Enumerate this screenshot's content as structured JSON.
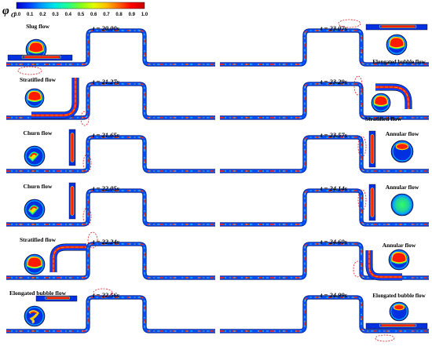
{
  "colorbar": {
    "symbol": "φ",
    "subscript": "G",
    "ticks": [
      "0.0",
      "0.1",
      "0.2",
      "0.3",
      "0.4",
      "0.5",
      "0.6",
      "0.7",
      "0.8",
      "0.9",
      "1.0"
    ],
    "colors": [
      "#0000c8",
      "#0040ff",
      "#00a0ff",
      "#00e8e8",
      "#20ff90",
      "#80ff20",
      "#e0ff00",
      "#ffc000",
      "#ff6000",
      "#ff0000",
      "#c80000"
    ]
  },
  "left_panels": [
    {
      "time": "t = 20.00s",
      "flow": "Slug flow",
      "inset": "horizontal"
    },
    {
      "time": "t = 21.27s",
      "flow": "Stratified flow",
      "inset": "elbow-up"
    },
    {
      "time": "t = 21.65s",
      "flow": "Churn flow",
      "inset": "vertical"
    },
    {
      "time": "t = 22.05s",
      "flow": "Churn flow",
      "inset": "vertical"
    },
    {
      "time": "t = 22.24s",
      "flow": "Stratified flow",
      "inset": "elbow-top"
    },
    {
      "time": "t = 22.56s",
      "flow": "Elongated bubble flow",
      "inset": "horizontal-top"
    }
  ],
  "right_panels": [
    {
      "time": "t = 23.07s",
      "flow": "Elongated bubble flow",
      "inset": "horizontal-top"
    },
    {
      "time": "t = 23.29s",
      "flow": "Stratified flow",
      "inset": "elbow-down"
    },
    {
      "time": "t = 23.57s",
      "flow": "Annular flow",
      "inset": "vertical"
    },
    {
      "time": "t = 24.14s",
      "flow": "Annular flow",
      "inset": "vertical"
    },
    {
      "time": "t = 24.60s",
      "flow": "Annular flow",
      "inset": "elbow-bottom"
    },
    {
      "time": "t = 24.99s",
      "flow": "Elongated bubble flow",
      "inset": "horizontal"
    }
  ]
}
